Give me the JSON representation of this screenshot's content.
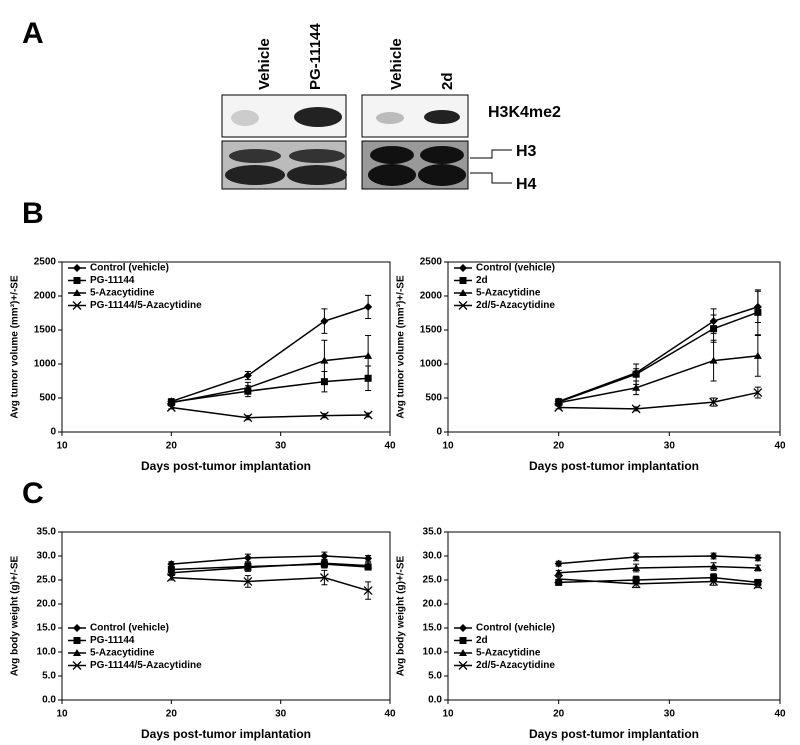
{
  "panel_labels": [
    "A",
    "B",
    "C"
  ],
  "blot": {
    "lanes": [
      "Vehicle",
      "PG-11144",
      "Vehicle",
      "2d"
    ],
    "bands": [
      "H3K4me2",
      "H3",
      "H4"
    ]
  },
  "chart_data": [
    {
      "type": "line",
      "legend": "upper left",
      "y_label": "Avg tumor volume (mm³)+/-SE",
      "x_label": "Days  post-tumor implantation",
      "x": [
        20,
        27,
        34,
        38
      ],
      "xlim": [
        10,
        40
      ],
      "xticks": [
        10,
        20,
        30,
        40
      ],
      "ylim": [
        0,
        2500
      ],
      "yticks": [
        0,
        500,
        1000,
        1500,
        2000,
        2500
      ],
      "series": [
        {
          "name": "Control (vehicle)",
          "color": "#000000",
          "marker": "diamond",
          "values": [
            450,
            830,
            1630,
            1840
          ],
          "errors": [
            40,
            60,
            180,
            170
          ]
        },
        {
          "name": "PG-11144",
          "color": "#000000",
          "marker": "square",
          "values": [
            440,
            600,
            740,
            790
          ],
          "errors": [
            40,
            80,
            150,
            180
          ]
        },
        {
          "name": "5-Azacytidine",
          "color": "#000000",
          "marker": "triangle",
          "values": [
            430,
            650,
            1050,
            1120
          ],
          "errors": [
            40,
            80,
            300,
            300
          ]
        },
        {
          "name": "PG-11144/5-Azacytidine",
          "color": "#000000",
          "marker": "x",
          "values": [
            360,
            210,
            240,
            250
          ],
          "errors": [
            20,
            30,
            30,
            30
          ]
        }
      ]
    },
    {
      "type": "line",
      "legend": "upper left",
      "y_label": "Avg tumor volume (mm³)+/-SE",
      "x_label": "Days  post-tumor implantation",
      "x": [
        20,
        27,
        34,
        38
      ],
      "xlim": [
        10,
        40
      ],
      "xticks": [
        10,
        20,
        30,
        40
      ],
      "ylim": [
        0,
        2500
      ],
      "yticks": [
        0,
        500,
        1000,
        1500,
        2000,
        2500
      ],
      "series": [
        {
          "name": "Control (vehicle)",
          "color": "#000000",
          "marker": "diamond",
          "values": [
            450,
            870,
            1630,
            1840
          ],
          "errors": [
            40,
            60,
            180,
            230
          ]
        },
        {
          "name": "2d",
          "color": "#000000",
          "marker": "square",
          "values": [
            440,
            850,
            1520,
            1760
          ],
          "errors": [
            40,
            150,
            200,
            330
          ]
        },
        {
          "name": "5-Azacytidine",
          "color": "#000000",
          "marker": "triangle",
          "values": [
            430,
            650,
            1050,
            1120
          ],
          "errors": [
            40,
            100,
            300,
            300
          ]
        },
        {
          "name": "2d/5-Azacytidine",
          "color": "#000000",
          "marker": "x",
          "values": [
            360,
            340,
            440,
            580
          ],
          "errors": [
            20,
            30,
            60,
            80
          ]
        }
      ]
    },
    {
      "type": "line",
      "legend": "lower left",
      "y_label": "Avg body weight (g)+/-SE",
      "x_label": "Days  post-tumor implantation",
      "x": [
        20,
        27,
        34,
        38
      ],
      "xlim": [
        10,
        40
      ],
      "xticks": [
        10,
        20,
        30,
        40
      ],
      "ylim": [
        0,
        35
      ],
      "yticks": [
        {
          "value": 0,
          "label": "0.0"
        },
        {
          "value": 5,
          "label": "5.0"
        },
        {
          "value": 10,
          "label": "10.0"
        },
        {
          "value": 15,
          "label": "15.0"
        },
        {
          "value": 20,
          "label": "20.0"
        },
        {
          "value": 25,
          "label": "25.0"
        },
        {
          "value": 30,
          "label": "30.0"
        },
        {
          "value": 35,
          "label": "35.0"
        }
      ],
      "series": [
        {
          "name": "Control (vehicle)",
          "color": "#000000",
          "marker": "diamond",
          "values": [
            28.3,
            29.6,
            30.0,
            29.5
          ],
          "errors": [
            0.5,
            0.8,
            0.8,
            0.6
          ]
        },
        {
          "name": "PG-11144",
          "color": "#000000",
          "marker": "square",
          "values": [
            27.2,
            27.8,
            28.3,
            27.7
          ],
          "errors": [
            0.5,
            0.8,
            0.8,
            0.6
          ]
        },
        {
          "name": "5-Azacytidine",
          "color": "#000000",
          "marker": "triangle",
          "values": [
            26.5,
            27.6,
            28.5,
            28.0
          ],
          "errors": [
            0.5,
            0.8,
            0.8,
            0.6
          ]
        },
        {
          "name": "PG-11144/5-Azacytidine",
          "color": "#000000",
          "marker": "x",
          "values": [
            25.5,
            24.7,
            25.5,
            22.8
          ],
          "errors": [
            0.5,
            1.2,
            1.5,
            1.8
          ]
        }
      ]
    },
    {
      "type": "line",
      "legend": "lower left",
      "y_label": "Avg body weight (g)+/-SE",
      "x_label": "Days  post-tumor implantation",
      "x": [
        20,
        27,
        34,
        38
      ],
      "xlim": [
        10,
        40
      ],
      "xticks": [
        10,
        20,
        30,
        40
      ],
      "ylim": [
        0,
        35
      ],
      "yticks": [
        {
          "value": 0,
          "label": "0.0"
        },
        {
          "value": 5,
          "label": "5.0"
        },
        {
          "value": 10,
          "label": "10.0"
        },
        {
          "value": 15,
          "label": "15.0"
        },
        {
          "value": 20,
          "label": "20.0"
        },
        {
          "value": 25,
          "label": "25.0"
        },
        {
          "value": 30,
          "label": "30.0"
        },
        {
          "value": 35,
          "label": "35.0"
        }
      ],
      "series": [
        {
          "name": "Control (vehicle)",
          "color": "#000000",
          "marker": "diamond",
          "values": [
            28.4,
            29.8,
            30.0,
            29.6
          ],
          "errors": [
            0.5,
            0.8,
            0.6,
            0.6
          ]
        },
        {
          "name": "2d",
          "color": "#000000",
          "marker": "square",
          "values": [
            24.5,
            25.0,
            25.5,
            24.5
          ],
          "errors": [
            0.5,
            0.8,
            0.8,
            0.6
          ]
        },
        {
          "name": "5-Azacytidine",
          "color": "#000000",
          "marker": "triangle",
          "values": [
            26.5,
            27.5,
            27.8,
            27.5
          ],
          "errors": [
            0.5,
            0.8,
            0.8,
            0.6
          ]
        },
        {
          "name": "2d/5-Azacytidine",
          "color": "#000000",
          "marker": "x",
          "values": [
            25.2,
            24.2,
            24.7,
            24.0
          ],
          "errors": [
            0.5,
            0.8,
            0.8,
            0.6
          ]
        }
      ]
    }
  ]
}
